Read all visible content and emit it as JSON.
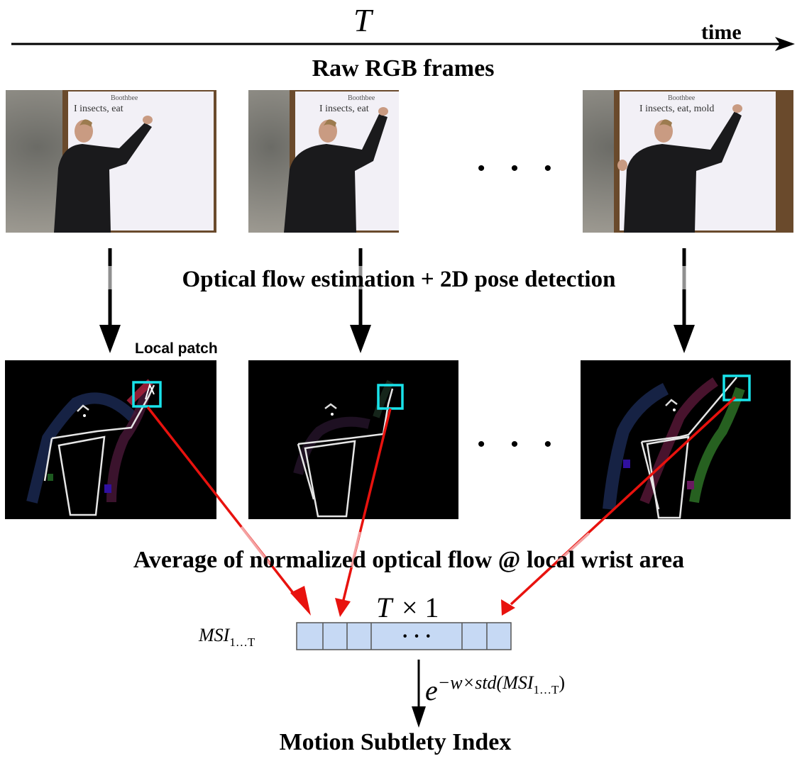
{
  "top": {
    "T_symbol": "T",
    "time_label": "time"
  },
  "labels": {
    "raw_frames": "Raw RGB frames",
    "flow_pose": "Optical flow estimation + 2D pose detection",
    "local_patch": "Local patch",
    "average_flow": "Average of normalized optical flow @ local wrist area",
    "result": "Motion Subtlety Index"
  },
  "frame_text": {
    "board_heading": "Boothbee",
    "board_line_1": "I insects, eat",
    "board_line_3": "I insects, eat, mold"
  },
  "ellipsis": "• • •",
  "vector": {
    "size_T": "T",
    "size_times_one": "× 1",
    "msi_label": "MSI",
    "msi_sub": "1…T",
    "cell_ellipsis": "· · ·",
    "formula_base": "e",
    "formula_exponent": "−w×std(MSI",
    "formula_sub": "1…T",
    "formula_close": ")"
  },
  "colors": {
    "arrow_red": "#e8120e",
    "patch_cyan": "#19e3ea",
    "vector_fill": "#c6d9f4",
    "vector_stroke": "#555555"
  }
}
